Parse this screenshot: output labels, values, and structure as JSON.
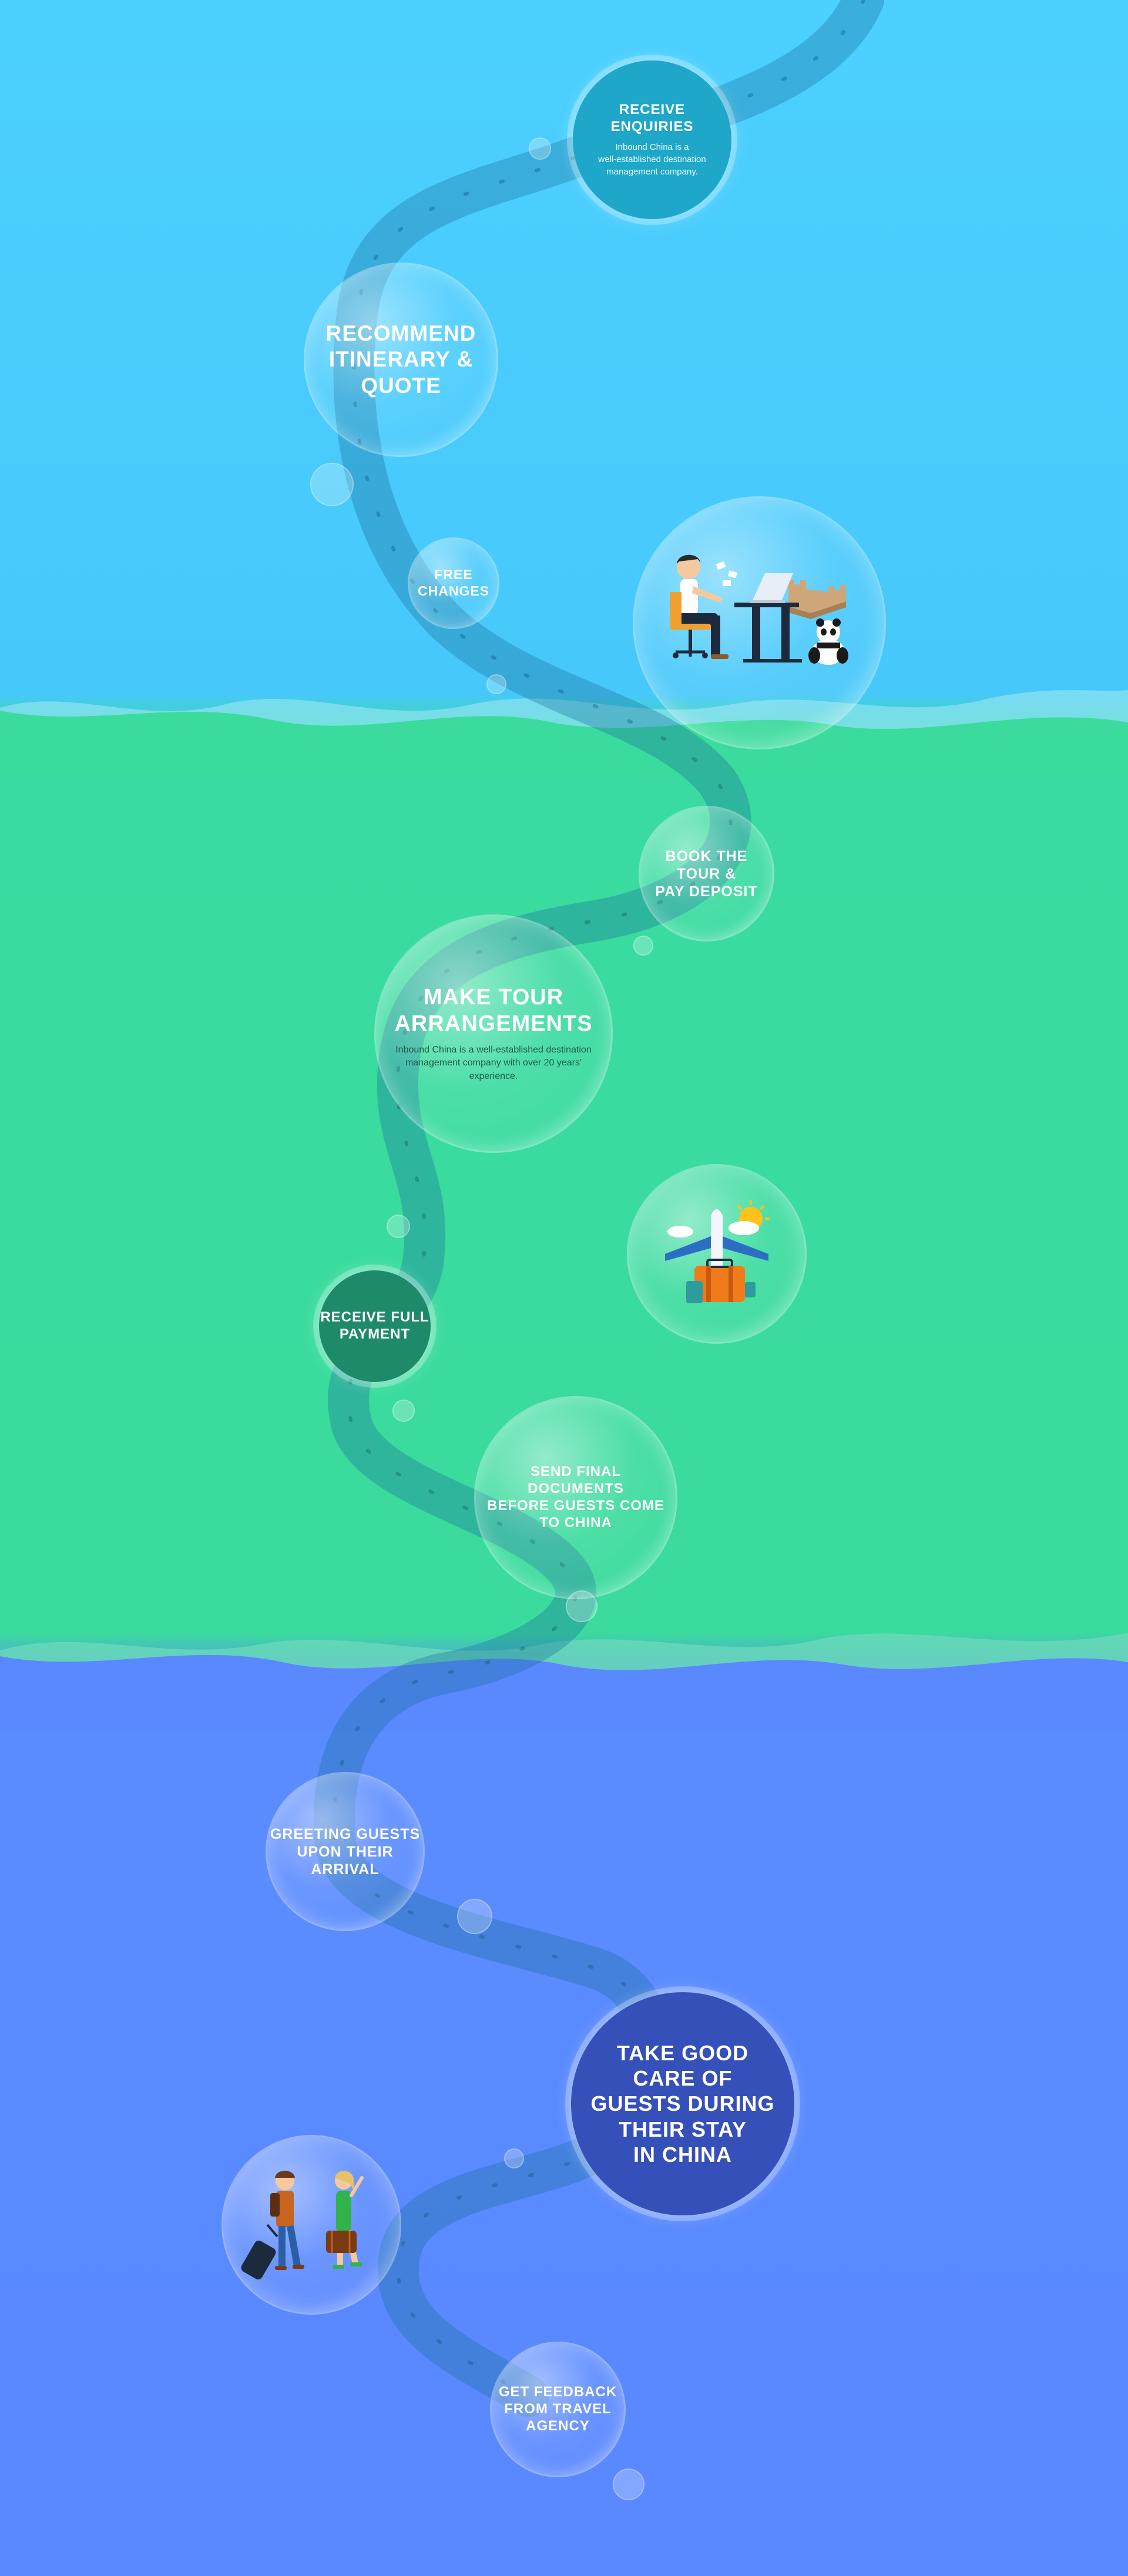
{
  "colors": {
    "sky": "#4cd0ff",
    "sea_green": "#3adb9c",
    "deep_blue": "#5a88ff",
    "road": "#2b86b8",
    "dark_teal": "#1f8a6a",
    "navy_circle": "#3550b8"
  },
  "steps": [
    {
      "title": "RECEIVE\nENQUIRIES",
      "desc": "Inbound China is a\nwell-established destination\nmanagement company."
    },
    {
      "title": "RECOMMEND\nITINERARY &\nQUOTE"
    },
    {
      "title": "FREE\nCHANGES"
    },
    {
      "title": "BOOK THE\nTOUR &\nPAY DEPOSIT"
    },
    {
      "title": "MAKE TOUR\nARRANGEMENTS",
      "desc": "Inbound China is a well-established destination\nmanagement company with over 20 years'\nexperience."
    },
    {
      "title": "RECEIVE FULL\nPAYMENT"
    },
    {
      "title": "SEND FINAL\nDOCUMENTS\nBEFORE GUESTS COME\nTO CHINA"
    },
    {
      "title": "GREETING GUESTS\nUPON THEIR\nARRIVAL"
    },
    {
      "title": "TAKE GOOD\nCARE OF\nGUESTS DURING\nTHEIR STAY\nIN CHINA"
    },
    {
      "title": "GET FEEDBACK\nFROM TRAVEL\nAGENCY"
    }
  ],
  "illustrations": [
    "office-desk-great-wall-panda-icon",
    "airplane-luggage-icon",
    "travelers-icon"
  ]
}
